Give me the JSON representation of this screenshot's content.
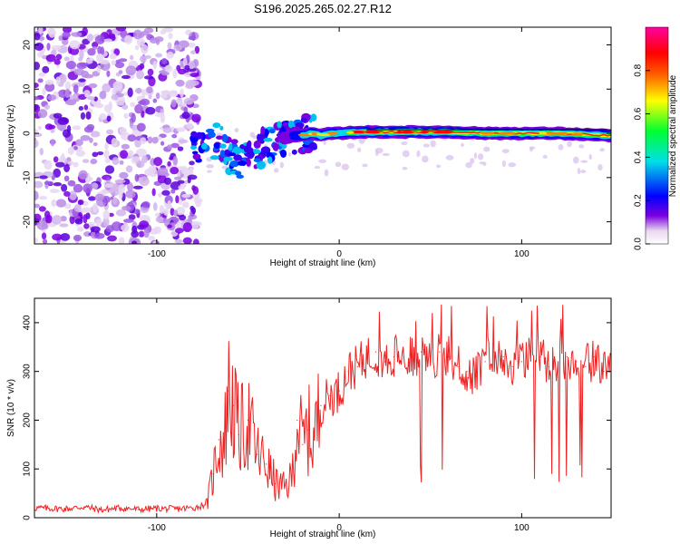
{
  "title": "S196.2025.265.02.27.R12",
  "chart_data": [
    {
      "type": "heatmap",
      "title": "S196.2025.265.02.27.R12",
      "xlabel": "Height of straight line (km)",
      "ylabel": "Frequency (Hz)",
      "xlim": [
        -167,
        149
      ],
      "ylim": [
        -25,
        24
      ],
      "xticks": [
        -100,
        0,
        100
      ],
      "yticks": [
        -20,
        -10,
        0,
        10,
        20
      ],
      "colorbar": {
        "label": "Normalized spectral amplitude",
        "range": [
          0,
          1
        ],
        "ticks": [
          "0.0",
          "0.2",
          "0.4",
          "0.6",
          "0.8"
        ],
        "colors": [
          "#e8d8f0",
          "#7a00e0",
          "#0000ff",
          "#00e0e8",
          "#00ff30",
          "#ffff00",
          "#ff6000",
          "#ff0000",
          "#ff00a0"
        ]
      },
      "ridge": {
        "x": [
          -80,
          -72,
          -65,
          -60,
          -55,
          -50,
          -45,
          -40,
          -35,
          -30,
          -25,
          -20,
          -15,
          -10,
          -5,
          0,
          10,
          20,
          40,
          60,
          80,
          100,
          120,
          149
        ],
        "y": [
          -3,
          -1,
          -2,
          -5,
          -6,
          -5,
          -4,
          -3,
          -2,
          -1,
          -0.5,
          -0.5,
          0,
          -0.5,
          0,
          0,
          0.3,
          0.3,
          0.3,
          0.3,
          0,
          0,
          0,
          -0.5
        ]
      }
    },
    {
      "type": "line",
      "xlabel": "Height of straight line (km)",
      "ylabel": "SNR (10 * v/v)",
      "xlim": [
        -167,
        149
      ],
      "ylim": [
        0,
        450
      ],
      "xticks": [
        -100,
        0,
        100
      ],
      "yticks": [
        0,
        100,
        200,
        300,
        400
      ],
      "color": "#ee2222",
      "series": [
        {
          "name": "SNR",
          "x": [
            -167,
            -150,
            -140,
            -130,
            -120,
            -110,
            -100,
            -90,
            -80,
            -75,
            -72,
            -69,
            -66,
            -63,
            -61,
            -58,
            -55,
            -50,
            -45,
            -40,
            -35,
            -30,
            -26,
            -23,
            -20,
            -17,
            -14,
            -10,
            -5,
            0,
            5,
            10,
            15,
            20,
            25,
            30,
            35,
            40,
            45,
            50,
            55,
            60,
            65,
            70,
            75,
            80,
            85,
            90,
            95,
            100,
            105,
            110,
            115,
            120,
            125,
            130,
            135,
            140,
            145,
            149
          ],
          "y": [
            20,
            18,
            22,
            16,
            20,
            17,
            19,
            18,
            20,
            25,
            35,
            90,
            160,
            150,
            260,
            230,
            170,
            200,
            130,
            110,
            70,
            60,
            80,
            200,
            150,
            180,
            160,
            230,
            250,
            260,
            300,
            310,
            330,
            340,
            320,
            330,
            340,
            330,
            340,
            320,
            340,
            330,
            310,
            300,
            290,
            320,
            340,
            330,
            310,
            320,
            340,
            330,
            310,
            320,
            330,
            320,
            310,
            330,
            300,
            320
          ]
        }
      ]
    }
  ]
}
